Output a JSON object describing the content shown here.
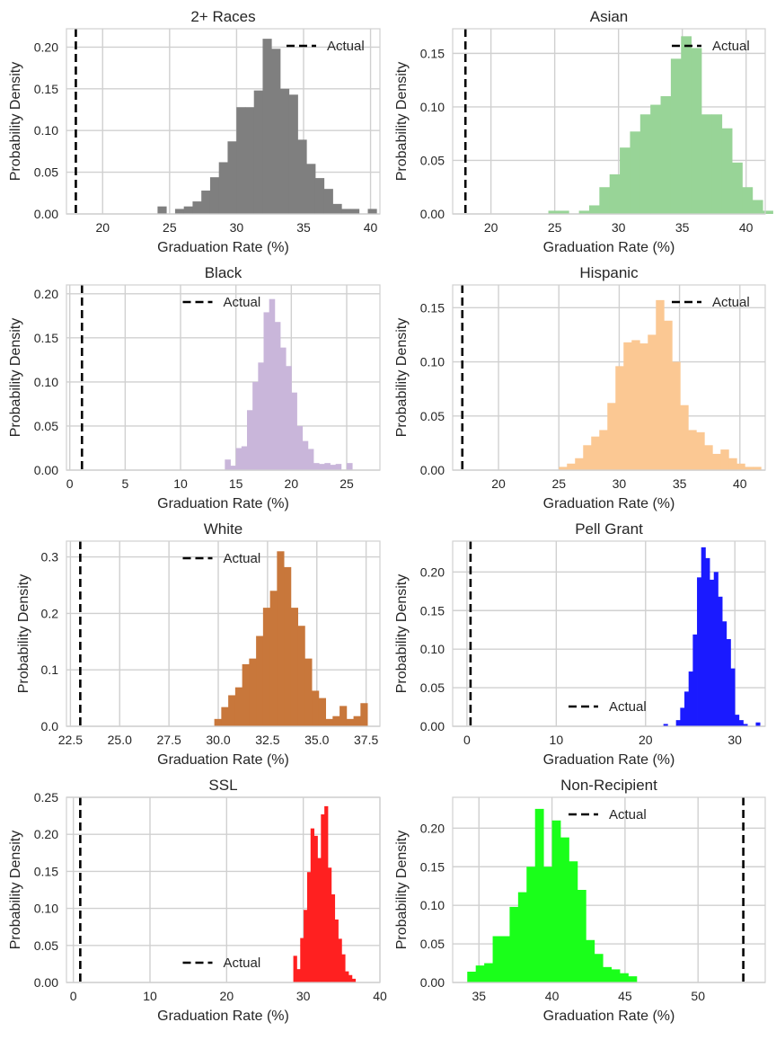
{
  "chart_data": [
    {
      "type": "histogram",
      "title": "2+ Races",
      "xlabel": "Graduation Rate (%)",
      "ylabel": "Probability Density",
      "color": "#7f7f7f",
      "xlim": [
        17.3,
        40.7
      ],
      "ylim": [
        0,
        0.222
      ],
      "xticks": [
        20,
        25,
        30,
        35,
        40
      ],
      "xticklabels": [
        "20",
        "25",
        "30",
        "35",
        "40"
      ],
      "yticks": [
        0,
        0.05,
        0.1,
        0.15,
        0.2
      ],
      "yticklabels": [
        "0.00",
        "0.05",
        "0.10",
        "0.15",
        "0.20"
      ],
      "bin_start": 24.1,
      "bin_width": 0.654,
      "densities": [
        0.009,
        0.0,
        0.006,
        0.009,
        0.015,
        0.028,
        0.044,
        0.062,
        0.087,
        0.128,
        0.128,
        0.148,
        0.21,
        0.198,
        0.15,
        0.143,
        0.089,
        0.06,
        0.043,
        0.03,
        0.012,
        0.006,
        0.006,
        0.0,
        0.006
      ],
      "actual_x": 18.0,
      "legend_label": "Actual",
      "legend_loc": "upper right"
    },
    {
      "type": "histogram",
      "title": "Asian",
      "xlabel": "Graduation Rate (%)",
      "ylabel": "Probability Density",
      "color": "#98d497",
      "xlim": [
        17.0,
        41.5
      ],
      "ylim": [
        0,
        0.173
      ],
      "xticks": [
        20,
        25,
        30,
        35,
        40
      ],
      "xticklabels": [
        "20",
        "25",
        "30",
        "35",
        "40"
      ],
      "yticks": [
        0,
        0.05,
        0.1,
        0.15
      ],
      "yticklabels": [
        "0.00",
        "0.05",
        "0.10",
        "0.15"
      ],
      "bin_start": 24.5,
      "bin_width": 0.8,
      "densities": [
        0.003,
        0.003,
        0.0,
        0.003,
        0.008,
        0.025,
        0.037,
        0.062,
        0.077,
        0.093,
        0.102,
        0.11,
        0.145,
        0.166,
        0.155,
        0.093,
        0.093,
        0.08,
        0.048,
        0.025,
        0.013,
        0.003
      ],
      "actual_x": 18.0,
      "legend_label": "Actual",
      "legend_loc": "upper right"
    },
    {
      "type": "histogram",
      "title": "Black",
      "xlabel": "Graduation Rate (%)",
      "ylabel": "Probability Density",
      "color": "#c9b6da",
      "xlim": [
        -0.3,
        28.0
      ],
      "ylim": [
        0,
        0.21
      ],
      "xticks": [
        0,
        5,
        10,
        15,
        20,
        25
      ],
      "xticklabels": [
        "0",
        "5",
        "10",
        "15",
        "20",
        "25"
      ],
      "yticks": [
        0,
        0.05,
        0.1,
        0.15,
        0.2
      ],
      "yticklabels": [
        "0.00",
        "0.05",
        "0.10",
        "0.15",
        "0.20"
      ],
      "bin_start": 14.0,
      "bin_width": 0.5,
      "densities": [
        0.012,
        0.005,
        0.025,
        0.027,
        0.068,
        0.1,
        0.122,
        0.179,
        0.194,
        0.168,
        0.139,
        0.118,
        0.088,
        0.05,
        0.033,
        0.024,
        0.008,
        0.007,
        0.008,
        0.006,
        0.007,
        0.0,
        0.008
      ],
      "actual_x": 1.1,
      "legend_label": "Actual",
      "legend_loc": "upper center"
    },
    {
      "type": "histogram",
      "title": "Hispanic",
      "xlabel": "Graduation Rate (%)",
      "ylabel": "Probability Density",
      "color": "#fbc893",
      "xlim": [
        16.2,
        42.1
      ],
      "ylim": [
        0,
        0.171
      ],
      "xticks": [
        20,
        25,
        30,
        35,
        40
      ],
      "xticklabels": [
        "20",
        "25",
        "30",
        "35",
        "40"
      ],
      "yticks": [
        0,
        0.05,
        0.1,
        0.15
      ],
      "yticklabels": [
        "0.00",
        "0.05",
        "0.10",
        "0.15"
      ],
      "bin_start": 25.0,
      "bin_width": 0.67,
      "densities": [
        0.003,
        0.006,
        0.011,
        0.023,
        0.031,
        0.037,
        0.062,
        0.096,
        0.118,
        0.12,
        0.117,
        0.125,
        0.157,
        0.138,
        0.1,
        0.06,
        0.037,
        0.035,
        0.023,
        0.015,
        0.019,
        0.011,
        0.006,
        0.003,
        0.003
      ],
      "actual_x": 17.0,
      "legend_label": "Actual",
      "legend_loc": "upper right"
    },
    {
      "type": "histogram",
      "title": "White",
      "xlabel": "Graduation Rate (%)",
      "ylabel": "Probability Density",
      "color": "#c8773b",
      "xlim": [
        22.3,
        38.2
      ],
      "ylim": [
        0,
        0.328
      ],
      "xticks": [
        22.5,
        25.0,
        27.5,
        30.0,
        32.5,
        35.0,
        37.5
      ],
      "xticklabels": [
        "22.5",
        "25.0",
        "27.5",
        "30.0",
        "32.5",
        "35.0",
        "37.5"
      ],
      "yticks": [
        0,
        0.1,
        0.2,
        0.3
      ],
      "yticklabels": [
        "0.0",
        "0.1",
        "0.2",
        "0.3"
      ],
      "bin_start": 29.8,
      "bin_width": 0.353,
      "densities": [
        0.013,
        0.034,
        0.055,
        0.069,
        0.11,
        0.12,
        0.16,
        0.21,
        0.24,
        0.31,
        0.282,
        0.21,
        0.178,
        0.12,
        0.063,
        0.05,
        0.013,
        0.018,
        0.036,
        0.013,
        0.018,
        0.041
      ],
      "actual_x": 23.0,
      "legend_label": "Actual",
      "legend_loc": "upper center"
    },
    {
      "type": "histogram",
      "title": "Pell Grant",
      "xlabel": "Graduation Rate (%)",
      "ylabel": "Probability Density",
      "color": "#1a1aff",
      "xlim": [
        -1.6,
        33.4
      ],
      "ylim": [
        0,
        0.24
      ],
      "xticks": [
        0,
        10,
        20,
        30
      ],
      "xticklabels": [
        "0",
        "10",
        "20",
        "30"
      ],
      "yticks": [
        0,
        0.05,
        0.1,
        0.15,
        0.2
      ],
      "yticklabels": [
        "0.00",
        "0.05",
        "0.10",
        "0.15",
        "0.20"
      ],
      "bin_start": 22.0,
      "bin_width": 0.47,
      "densities": [
        0.003,
        0.0,
        0.0,
        0.008,
        0.024,
        0.045,
        0.071,
        0.119,
        0.193,
        0.232,
        0.218,
        0.19,
        0.2,
        0.168,
        0.136,
        0.113,
        0.075,
        0.015,
        0.008,
        0.003,
        0.0,
        0.0,
        0.005
      ],
      "actual_x": 0.4,
      "legend_label": "Actual",
      "legend_loc": "lower center"
    },
    {
      "type": "histogram",
      "title": "SSL",
      "xlabel": "Graduation Rate (%)",
      "ylabel": "Probability Density",
      "color": "#ff2020",
      "xlim": [
        -0.9,
        40.0
      ],
      "ylim": [
        0,
        0.25
      ],
      "xticks": [
        0,
        10,
        20,
        30,
        40
      ],
      "xticklabels": [
        "0",
        "10",
        "20",
        "30",
        "40"
      ],
      "yticks": [
        0,
        0.05,
        0.1,
        0.15,
        0.2,
        0.25
      ],
      "yticklabels": [
        "0.00",
        "0.05",
        "0.10",
        "0.15",
        "0.20",
        "0.25"
      ],
      "bin_start": 28.7,
      "bin_width": 0.45,
      "densities": [
        0.036,
        0.018,
        0.06,
        0.098,
        0.149,
        0.208,
        0.198,
        0.168,
        0.227,
        0.238,
        0.155,
        0.119,
        0.085,
        0.059,
        0.038,
        0.015,
        0.01,
        0.005
      ],
      "actual_x": 0.9,
      "legend_label": "Actual",
      "legend_loc": "lower center"
    },
    {
      "type": "histogram",
      "title": "Non-Recipient",
      "xlabel": "Graduation Rate (%)",
      "ylabel": "Probability Density",
      "color": "#1aff1a",
      "xlim": [
        33.2,
        54.6
      ],
      "ylim": [
        0,
        0.24
      ],
      "xticks": [
        35,
        40,
        45,
        50
      ],
      "xticklabels": [
        "35",
        "40",
        "45",
        "50"
      ],
      "yticks": [
        0,
        0.05,
        0.1,
        0.15,
        0.2
      ],
      "yticklabels": [
        "0.00",
        "0.05",
        "0.10",
        "0.15",
        "0.20"
      ],
      "bin_start": 34.2,
      "bin_width": 0.58,
      "densities": [
        0.014,
        0.022,
        0.025,
        0.06,
        0.06,
        0.098,
        0.117,
        0.15,
        0.225,
        0.15,
        0.21,
        0.188,
        0.157,
        0.12,
        0.055,
        0.037,
        0.02,
        0.017,
        0.012,
        0.008
      ],
      "actual_x": 53.1,
      "legend_label": "Actual",
      "legend_loc": "upper center"
    }
  ]
}
